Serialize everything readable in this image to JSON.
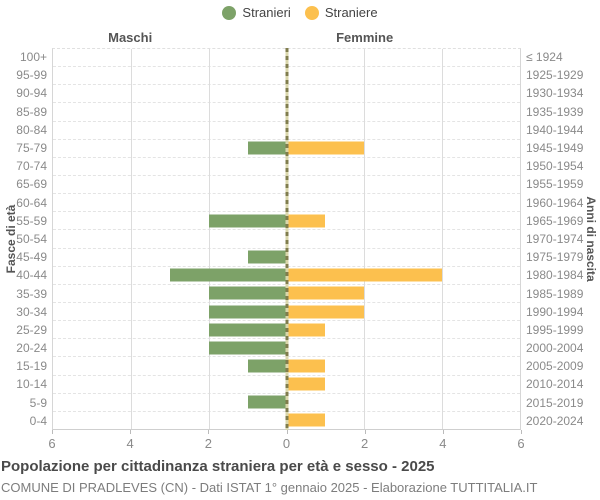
{
  "legend": {
    "items": [
      {
        "label": "Stranieri",
        "color": "#7DA268"
      },
      {
        "label": "Straniere",
        "color": "#FCC04E"
      }
    ]
  },
  "headers": {
    "left": "Maschi",
    "right": "Femmine"
  },
  "axes": {
    "left_title": "Fasce di età",
    "right_title": "Anni di nascita",
    "x_ticks": [
      "6",
      "4",
      "2",
      "0",
      "2",
      "4",
      "6"
    ]
  },
  "chart_data": {
    "type": "bar",
    "subtype": "population-pyramid",
    "title": "Popolazione per cittadinanza straniera per età e sesso - 2025",
    "categories": [
      "100+",
      "95-99",
      "90-94",
      "85-89",
      "80-84",
      "75-79",
      "70-74",
      "65-69",
      "60-64",
      "55-59",
      "50-54",
      "45-49",
      "40-44",
      "35-39",
      "30-34",
      "25-29",
      "20-24",
      "15-19",
      "10-14",
      "5-9",
      "0-4"
    ],
    "birth_years": [
      "≤ 1924",
      "1925-1929",
      "1930-1934",
      "1935-1939",
      "1940-1944",
      "1945-1949",
      "1950-1954",
      "1955-1959",
      "1960-1964",
      "1965-1969",
      "1970-1974",
      "1975-1979",
      "1980-1984",
      "1985-1989",
      "1990-1994",
      "1995-1999",
      "2000-2004",
      "2005-2009",
      "2010-2014",
      "2015-2019",
      "2020-2024"
    ],
    "series": [
      {
        "name": "Stranieri",
        "side": "left",
        "color": "#7DA268",
        "values": [
          0,
          0,
          0,
          0,
          0,
          1,
          0,
          0,
          0,
          2,
          0,
          1,
          3,
          2,
          2,
          2,
          2,
          1,
          0,
          1,
          0
        ]
      },
      {
        "name": "Straniere",
        "side": "right",
        "color": "#FCC04E",
        "values": [
          0,
          0,
          0,
          0,
          0,
          2,
          0,
          0,
          0,
          1,
          0,
          0,
          4,
          2,
          2,
          1,
          0,
          1,
          1,
          0,
          1
        ]
      }
    ],
    "xlabel": "",
    "ylabel_left": "Fasce di età",
    "ylabel_right": "Anni di nascita",
    "xlim": [
      0,
      6
    ],
    "x_tick_step": 2,
    "grid": true,
    "legend_position": "top"
  },
  "footer": {
    "title": "Popolazione per cittadinanza straniera per età e sesso - 2025",
    "subtitle": "COMUNE DI PRADLEVES (CN) - Dati ISTAT 1° gennaio 2025 - Elaborazione TUTTITALIA.IT"
  }
}
